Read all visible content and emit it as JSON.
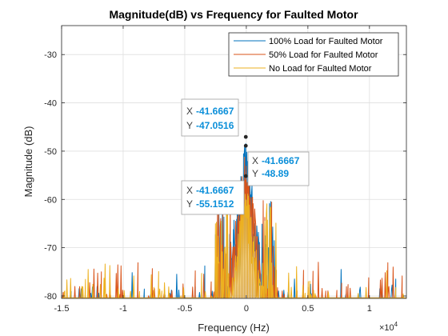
{
  "chart_data": {
    "type": "line",
    "title": "Magnitude(dB) vs Frequency for Faulted Motor",
    "xlabel": "Frequency (Hz)",
    "ylabel": "Magnitude (dB)",
    "x_exponent_base": "×10",
    "x_exponent_power": "4",
    "x_exponent_value": 10000,
    "xlim": [
      -1.5,
      1.3
    ],
    "ylim": [
      -80.5,
      -24
    ],
    "xticks": [
      -1.5,
      -1,
      -0.5,
      0,
      0.5,
      1
    ],
    "xtick_labels": [
      "-1.5",
      "-1",
      "-0.5",
      "0",
      "0.5",
      "1"
    ],
    "yticks": [
      -80,
      -70,
      -60,
      -50,
      -40,
      -30
    ],
    "ytick_labels": [
      "-80",
      "-70",
      "-60",
      "-50",
      "-40",
      "-30"
    ],
    "grid": true,
    "legend_position": "top-right",
    "series": [
      {
        "name": "100% Load for Faulted Motor",
        "color": "#0072BD",
        "peak": [
          -0.0041667,
          -47.0516
        ]
      },
      {
        "name": "50% Load for Faulted Motor",
        "color": "#D95319",
        "peak": [
          -0.0041667,
          -48.89
        ]
      },
      {
        "name": "No Load for Faulted Motor",
        "color": "#EDB120",
        "peak": [
          -0.0041667,
          -55.1512
        ]
      }
    ],
    "datatips": [
      {
        "x_key": "X",
        "x_value": "-41.6667",
        "y_key": "Y",
        "y_value": "-47.0516",
        "box_position": "upper-left"
      },
      {
        "x_key": "X",
        "x_value": "-41.6667",
        "y_key": "Y",
        "y_value": "-48.89",
        "box_position": "right"
      },
      {
        "x_key": "X",
        "x_value": "-41.6667",
        "y_key": "Y",
        "y_value": "-55.1512",
        "box_position": "lower-left"
      }
    ]
  }
}
